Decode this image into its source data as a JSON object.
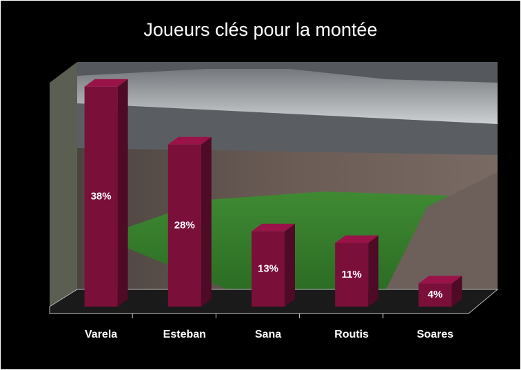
{
  "chart_data": {
    "type": "bar3d",
    "title": "Joueurs clés pour la montée",
    "categories": [
      "Varela",
      "Esteban",
      "Sana",
      "Routis",
      "Soares"
    ],
    "values": [
      38,
      28,
      13,
      11,
      4
    ],
    "value_labels": [
      "38%",
      "28%",
      "13%",
      "11%",
      "4%"
    ],
    "color": "#7a0f3a",
    "ylim": [
      0,
      40
    ]
  }
}
